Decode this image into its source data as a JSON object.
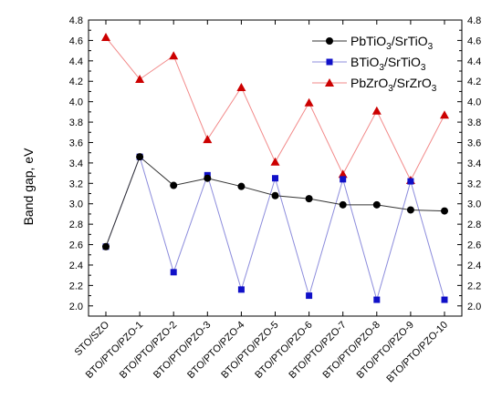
{
  "chart_data": {
    "type": "line",
    "ylabel": "Band gap, eV",
    "xlabel": "",
    "ylim": [
      1.9,
      4.8
    ],
    "y_ticks": [
      "2.0",
      "2.2",
      "2.4",
      "2.6",
      "2.8",
      "3.0",
      "3.2",
      "3.4",
      "3.6",
      "3.8",
      "4.0",
      "4.2",
      "4.4",
      "4.6",
      "4.8"
    ],
    "right_axis_mirrors_left": true,
    "grid": false,
    "legend_position": "top-right",
    "categories": [
      "STO/SZO",
      "BTO/PTO/PZO-1",
      "BTO/PTO/PZO-2",
      "BTO/PTO/PZO-3",
      "BTO/PTO/PZO-4",
      "BTO/PTO/PZO-5",
      "BTO/PTO/PZO-6",
      "BTO/PTO/PZO-7",
      "BTO/PTO/PZO-8",
      "BTO/PTO/PZO-9",
      "BTO/PTO/PZO-10"
    ],
    "series": [
      {
        "legend": {
          "base1": "PbTiO",
          "sub1": "3",
          "mid": "/SrTiO",
          "sub2": "3"
        },
        "marker": "circle",
        "color": "#000000",
        "values": [
          2.58,
          3.46,
          3.18,
          3.25,
          3.17,
          3.08,
          3.05,
          2.99,
          2.99,
          2.94,
          2.93
        ]
      },
      {
        "legend": {
          "base1": "BTiO",
          "sub1": "3",
          "mid": "/SrTiO",
          "sub2": "3"
        },
        "marker": "square",
        "color": "#1010c8",
        "values": [
          2.58,
          3.46,
          2.33,
          3.28,
          2.16,
          3.25,
          2.1,
          3.24,
          2.06,
          3.22,
          2.06
        ]
      },
      {
        "legend": {
          "base1": "PbZrO",
          "sub1": "3",
          "mid": "/SrZrO",
          "sub2": "3"
        },
        "marker": "triangle",
        "color": "#cc0000",
        "values": [
          4.63,
          4.22,
          4.45,
          3.63,
          4.14,
          3.41,
          3.99,
          3.29,
          3.91,
          3.23,
          3.87
        ]
      }
    ]
  }
}
